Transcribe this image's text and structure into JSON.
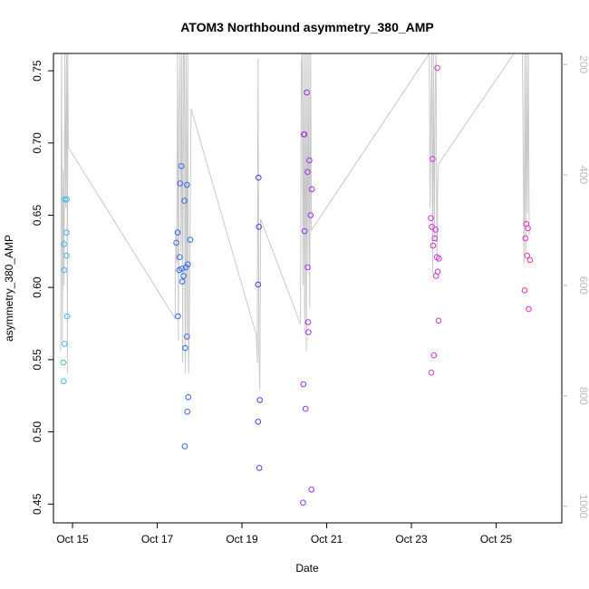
{
  "chart_data": {
    "type": "scatter",
    "title": "ATOM3 Northbound asymmetry_380_AMP",
    "xlabel": "Date",
    "ylabel": "asymmetry_380_AMP",
    "x_tick_labels": [
      "Oct 15",
      "Oct 17",
      "Oct 19",
      "Oct 21",
      "Oct 23",
      "Oct 25"
    ],
    "x_ticks": [
      15,
      17,
      19,
      21,
      23,
      25
    ],
    "xlim": [
      14.55,
      26.55
    ],
    "ylim": [
      0.437,
      0.762
    ],
    "y_ticks": [
      0.45,
      0.5,
      0.55,
      0.6,
      0.65,
      0.7,
      0.75
    ],
    "y_tick_labels": [
      "0.45",
      "0.50",
      "0.55",
      "0.60",
      "0.65",
      "0.70",
      "0.75"
    ],
    "y2_ticks": [
      200,
      400,
      600,
      800,
      1000
    ],
    "y2_tick_labels": [
      "200",
      "400",
      "600",
      "800",
      "1000"
    ],
    "y2lim": [
      1030,
      180
    ],
    "grid": false,
    "points": [
      {
        "x": 14.78,
        "y": 0.548,
        "color": "#3fb8e8"
      },
      {
        "x": 14.79,
        "y": 0.535,
        "color": "#3fb8e8"
      },
      {
        "x": 14.8,
        "y": 0.63,
        "color": "#3fb8e8"
      },
      {
        "x": 14.8,
        "y": 0.612,
        "color": "#3fb8e8"
      },
      {
        "x": 14.81,
        "y": 0.561,
        "color": "#3fb8e8"
      },
      {
        "x": 14.82,
        "y": 0.661,
        "color": "#3fb8e8"
      },
      {
        "x": 14.86,
        "y": 0.661,
        "color": "#3fb8e8"
      },
      {
        "x": 14.86,
        "y": 0.622,
        "color": "#3fb8e8"
      },
      {
        "x": 14.86,
        "y": 0.638,
        "color": "#3fb8e8"
      },
      {
        "x": 14.87,
        "y": 0.58,
        "color": "#3fb8e8"
      },
      {
        "x": 17.45,
        "y": 0.631,
        "color": "#2f6ae8"
      },
      {
        "x": 17.48,
        "y": 0.638,
        "color": "#2f6ae8"
      },
      {
        "x": 17.49,
        "y": 0.58,
        "color": "#2f6ae8"
      },
      {
        "x": 17.52,
        "y": 0.612,
        "color": "#2f6ae8"
      },
      {
        "x": 17.53,
        "y": 0.621,
        "color": "#2f6ae8"
      },
      {
        "x": 17.54,
        "y": 0.672,
        "color": "#2f6ae8"
      },
      {
        "x": 17.57,
        "y": 0.684,
        "color": "#2f6ae8"
      },
      {
        "x": 17.58,
        "y": 0.613,
        "color": "#2f6ae8"
      },
      {
        "x": 17.59,
        "y": 0.604,
        "color": "#2f6ae8"
      },
      {
        "x": 17.62,
        "y": 0.608,
        "color": "#2f6ae8"
      },
      {
        "x": 17.64,
        "y": 0.66,
        "color": "#2f6ae8"
      },
      {
        "x": 17.65,
        "y": 0.49,
        "color": "#2f6ae8"
      },
      {
        "x": 17.66,
        "y": 0.558,
        "color": "#2f6ae8"
      },
      {
        "x": 17.68,
        "y": 0.614,
        "color": "#2f6ae8"
      },
      {
        "x": 17.7,
        "y": 0.671,
        "color": "#2f6ae8"
      },
      {
        "x": 17.7,
        "y": 0.566,
        "color": "#2f6ae8"
      },
      {
        "x": 17.71,
        "y": 0.514,
        "color": "#2f6ae8"
      },
      {
        "x": 17.72,
        "y": 0.616,
        "color": "#2f6ae8"
      },
      {
        "x": 17.73,
        "y": 0.524,
        "color": "#2f6ae8"
      },
      {
        "x": 17.78,
        "y": 0.633,
        "color": "#2f6ae8"
      },
      {
        "x": 19.38,
        "y": 0.507,
        "color": "#4b3ee8"
      },
      {
        "x": 19.38,
        "y": 0.602,
        "color": "#4b3ee8"
      },
      {
        "x": 19.39,
        "y": 0.676,
        "color": "#4b3ee8"
      },
      {
        "x": 19.4,
        "y": 0.642,
        "color": "#4b3ee8"
      },
      {
        "x": 19.41,
        "y": 0.475,
        "color": "#4b3ee8"
      },
      {
        "x": 19.42,
        "y": 0.522,
        "color": "#4b3ee8"
      },
      {
        "x": 20.44,
        "y": 0.451,
        "color": "#9b30e8"
      },
      {
        "x": 20.45,
        "y": 0.533,
        "color": "#9b30e8"
      },
      {
        "x": 20.46,
        "y": 0.706,
        "color": "#9b30e8"
      },
      {
        "x": 20.47,
        "y": 0.706,
        "color": "#9b30e8"
      },
      {
        "x": 20.48,
        "y": 0.639,
        "color": "#9b30e8"
      },
      {
        "x": 20.5,
        "y": 0.516,
        "color": "#9b30e8"
      },
      {
        "x": 20.53,
        "y": 0.735,
        "color": "#9b30e8"
      },
      {
        "x": 20.55,
        "y": 0.68,
        "color": "#9b30e8"
      },
      {
        "x": 20.55,
        "y": 0.614,
        "color": "#9b30e8"
      },
      {
        "x": 20.56,
        "y": 0.576,
        "color": "#9b30e8"
      },
      {
        "x": 20.57,
        "y": 0.569,
        "color": "#9b30e8"
      },
      {
        "x": 20.59,
        "y": 0.688,
        "color": "#9b30e8"
      },
      {
        "x": 20.62,
        "y": 0.65,
        "color": "#9b30e8"
      },
      {
        "x": 20.64,
        "y": 0.46,
        "color": "#9b30e8"
      },
      {
        "x": 20.65,
        "y": 0.668,
        "color": "#9b30e8"
      },
      {
        "x": 23.46,
        "y": 0.648,
        "color": "#d630d8"
      },
      {
        "x": 23.47,
        "y": 0.541,
        "color": "#d630d8"
      },
      {
        "x": 23.48,
        "y": 0.642,
        "color": "#d630d8"
      },
      {
        "x": 23.5,
        "y": 0.689,
        "color": "#d630d8"
      },
      {
        "x": 23.51,
        "y": 0.629,
        "color": "#d630d8"
      },
      {
        "x": 23.53,
        "y": 0.553,
        "color": "#d630d8"
      },
      {
        "x": 23.55,
        "y": 0.634,
        "color": "#d630d8"
      },
      {
        "x": 23.57,
        "y": 0.64,
        "color": "#d630d8"
      },
      {
        "x": 23.58,
        "y": 0.608,
        "color": "#d630d8"
      },
      {
        "x": 23.6,
        "y": 0.621,
        "color": "#d630d8"
      },
      {
        "x": 23.61,
        "y": 0.752,
        "color": "#d630d8"
      },
      {
        "x": 23.62,
        "y": 0.611,
        "color": "#d630d8"
      },
      {
        "x": 23.64,
        "y": 0.577,
        "color": "#d630d8"
      },
      {
        "x": 23.65,
        "y": 0.62,
        "color": "#d630d8"
      },
      {
        "x": 25.67,
        "y": 0.598,
        "color": "#e830b0"
      },
      {
        "x": 25.69,
        "y": 0.634,
        "color": "#e830b0"
      },
      {
        "x": 25.71,
        "y": 0.644,
        "color": "#e830b0"
      },
      {
        "x": 25.73,
        "y": 0.622,
        "color": "#e830b0"
      },
      {
        "x": 25.75,
        "y": 0.641,
        "color": "#e830b0"
      },
      {
        "x": 25.77,
        "y": 0.585,
        "color": "#e830b0"
      },
      {
        "x": 25.8,
        "y": 0.619,
        "color": "#e830b0"
      }
    ],
    "line_series": {
      "color": "#c8c8c8",
      "axis": "right",
      "points": [
        [
          14.72,
          720
        ],
        [
          14.74,
          180
        ],
        [
          14.76,
          700
        ],
        [
          14.78,
          390
        ],
        [
          14.8,
          600
        ],
        [
          14.82,
          180
        ],
        [
          14.84,
          460
        ],
        [
          14.86,
          180
        ],
        [
          14.87,
          340
        ],
        [
          14.88,
          760
        ],
        [
          14.89,
          180
        ],
        [
          14.9,
          350
        ],
        [
          17.42,
          660
        ],
        [
          17.44,
          500
        ],
        [
          17.46,
          560
        ],
        [
          17.48,
          180
        ],
        [
          17.5,
          700
        ],
        [
          17.52,
          280
        ],
        [
          17.54,
          180
        ],
        [
          17.56,
          540
        ],
        [
          17.58,
          180
        ],
        [
          17.6,
          740
        ],
        [
          17.62,
          180
        ],
        [
          17.64,
          180
        ],
        [
          17.66,
          760
        ],
        [
          17.68,
          180
        ],
        [
          17.7,
          700
        ],
        [
          17.72,
          180
        ],
        [
          17.74,
          760
        ],
        [
          17.76,
          640
        ],
        [
          17.78,
          440
        ],
        [
          17.8,
          280
        ],
        [
          19.34,
          690
        ],
        [
          19.36,
          740
        ],
        [
          19.38,
          190
        ],
        [
          19.4,
          720
        ],
        [
          19.42,
          790
        ],
        [
          19.44,
          480
        ],
        [
          20.38,
          670
        ],
        [
          20.4,
          200
        ],
        [
          20.42,
          180
        ],
        [
          20.44,
          600
        ],
        [
          20.46,
          180
        ],
        [
          20.48,
          690
        ],
        [
          20.5,
          180
        ],
        [
          20.52,
          720
        ],
        [
          20.54,
          180
        ],
        [
          20.56,
          560
        ],
        [
          20.58,
          180
        ],
        [
          20.6,
          640
        ],
        [
          20.62,
          180
        ],
        [
          20.64,
          500
        ],
        [
          23.42,
          180
        ],
        [
          23.44,
          460
        ],
        [
          23.46,
          300
        ],
        [
          23.48,
          180
        ],
        [
          23.5,
          580
        ],
        [
          23.52,
          180
        ],
        [
          23.54,
          520
        ],
        [
          23.56,
          250
        ],
        [
          23.58,
          180
        ],
        [
          23.6,
          560
        ],
        [
          23.62,
          420
        ],
        [
          23.64,
          380
        ],
        [
          25.42,
          180
        ],
        [
          25.62,
          180
        ],
        [
          25.66,
          560
        ],
        [
          25.68,
          180
        ],
        [
          25.7,
          540
        ],
        [
          25.72,
          180
        ],
        [
          25.74,
          470
        ],
        [
          25.76,
          180
        ],
        [
          25.78,
          510
        ]
      ]
    }
  }
}
